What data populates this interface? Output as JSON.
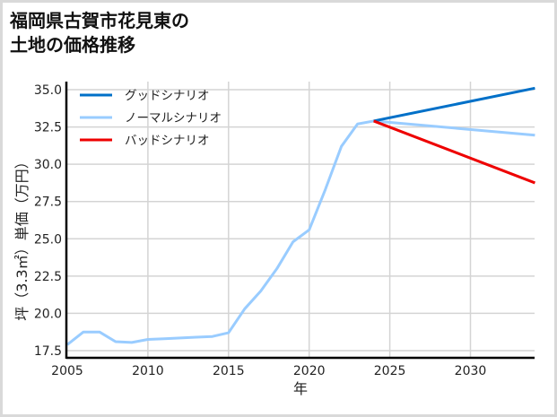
{
  "title": "福岡県古賀市花見東の\n土地の価格推移",
  "chart_data": {
    "type": "line",
    "title": "福岡県古賀市花見東の土地の価格推移",
    "xlabel": "年",
    "ylabel": "坪（3.3㎡）単価（万円）",
    "xlim": [
      2005,
      2034
    ],
    "ylim": [
      17.0,
      35.6
    ],
    "x_ticks": [
      2005,
      2010,
      2015,
      2020,
      2025,
      2030
    ],
    "y_ticks": [
      17.5,
      20.0,
      22.5,
      25.0,
      27.5,
      30.0,
      32.5,
      35.0
    ],
    "grid": true,
    "legend_position": "upper left",
    "series": [
      {
        "name": "グッドシナリオ",
        "color": "#0070c8",
        "x": [
          2024,
          2034
        ],
        "values": [
          32.9,
          35.1
        ]
      },
      {
        "name": "ノーマルシナリオ",
        "color": "#99ccff",
        "x": [
          2005,
          2006,
          2007,
          2008,
          2009,
          2010,
          2011,
          2012,
          2013,
          2014,
          2015,
          2016,
          2017,
          2018,
          2019,
          2020,
          2021,
          2022,
          2023,
          2024,
          2034
        ],
        "values": [
          17.9,
          18.75,
          18.75,
          18.1,
          18.05,
          18.25,
          18.3,
          18.35,
          18.4,
          18.45,
          18.7,
          20.3,
          21.5,
          23.0,
          24.8,
          25.6,
          28.3,
          31.2,
          32.7,
          32.9,
          31.95
        ]
      },
      {
        "name": "バッドシナリオ",
        "color": "#ee0000",
        "x": [
          2024,
          2034
        ],
        "values": [
          32.9,
          28.75
        ]
      }
    ]
  }
}
